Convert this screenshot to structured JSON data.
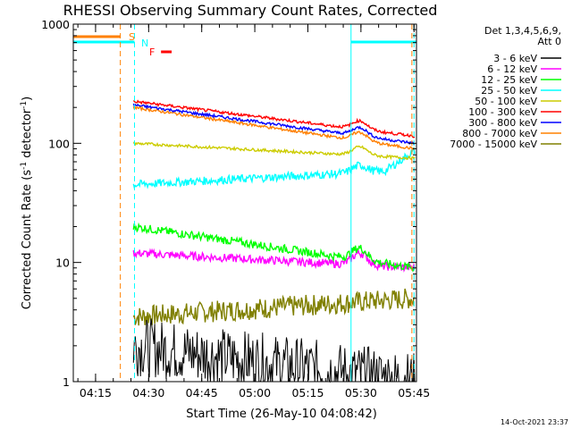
{
  "chart_data": {
    "type": "line",
    "title": "RHESSI Observing Summary Count Rates, Corrected",
    "xlabel": "Start Time (26-May-10 04:08:42)",
    "ylabel_main": "Corrected Count Rate (s",
    "ylabel_exp1": "-1",
    "ylabel_mid": " detector",
    "ylabel_exp2": "-1",
    "ylabel_end": ")",
    "yscale": "log",
    "ylim": [
      1,
      1000
    ],
    "xlim_minutes": [
      0,
      97
    ],
    "x_ticks": [
      "04:15",
      "04:30",
      "04:45",
      "05:00",
      "05:15",
      "05:30",
      "05:45"
    ],
    "y_ticks": [
      "1",
      "10",
      "100",
      "1000"
    ],
    "legend_header": [
      "Det 1,3,4,5,6,9,",
      "Att 0"
    ],
    "legend_position": "right-outside",
    "footer_date": "14-Oct-2021 23:37",
    "flag_labels": {
      "saa": "S",
      "night": "N",
      "flare": "F"
    },
    "series": [
      {
        "name": "3 - 6 keV",
        "color": "#000000",
        "values_start_end": [
          2,
          1
        ]
      },
      {
        "name": "6 - 12 keV",
        "color": "#ff00ff",
        "values_start_end": [
          12,
          9
        ]
      },
      {
        "name": "12 - 25 keV",
        "color": "#00ff00",
        "values_start_end": [
          20,
          9
        ]
      },
      {
        "name": "25 - 50 keV",
        "color": "#00ffff",
        "values_start_end": [
          45,
          60
        ]
      },
      {
        "name": "50 - 100 keV",
        "color": "#cccc00",
        "values_start_end": [
          100,
          75
        ]
      },
      {
        "name": "100 - 300 keV",
        "color": "#ff0000",
        "values_start_end": [
          225,
          115
        ]
      },
      {
        "name": "300 - 800 keV",
        "color": "#0000ff",
        "values_start_end": [
          210,
          100
        ]
      },
      {
        "name": "800 - 7000 keV",
        "color": "#ff8000",
        "values_start_end": [
          200,
          90
        ]
      },
      {
        "name": "7000 - 15000 keV",
        "color": "#808000",
        "values_start_end": [
          3.5,
          5
        ]
      }
    ]
  }
}
